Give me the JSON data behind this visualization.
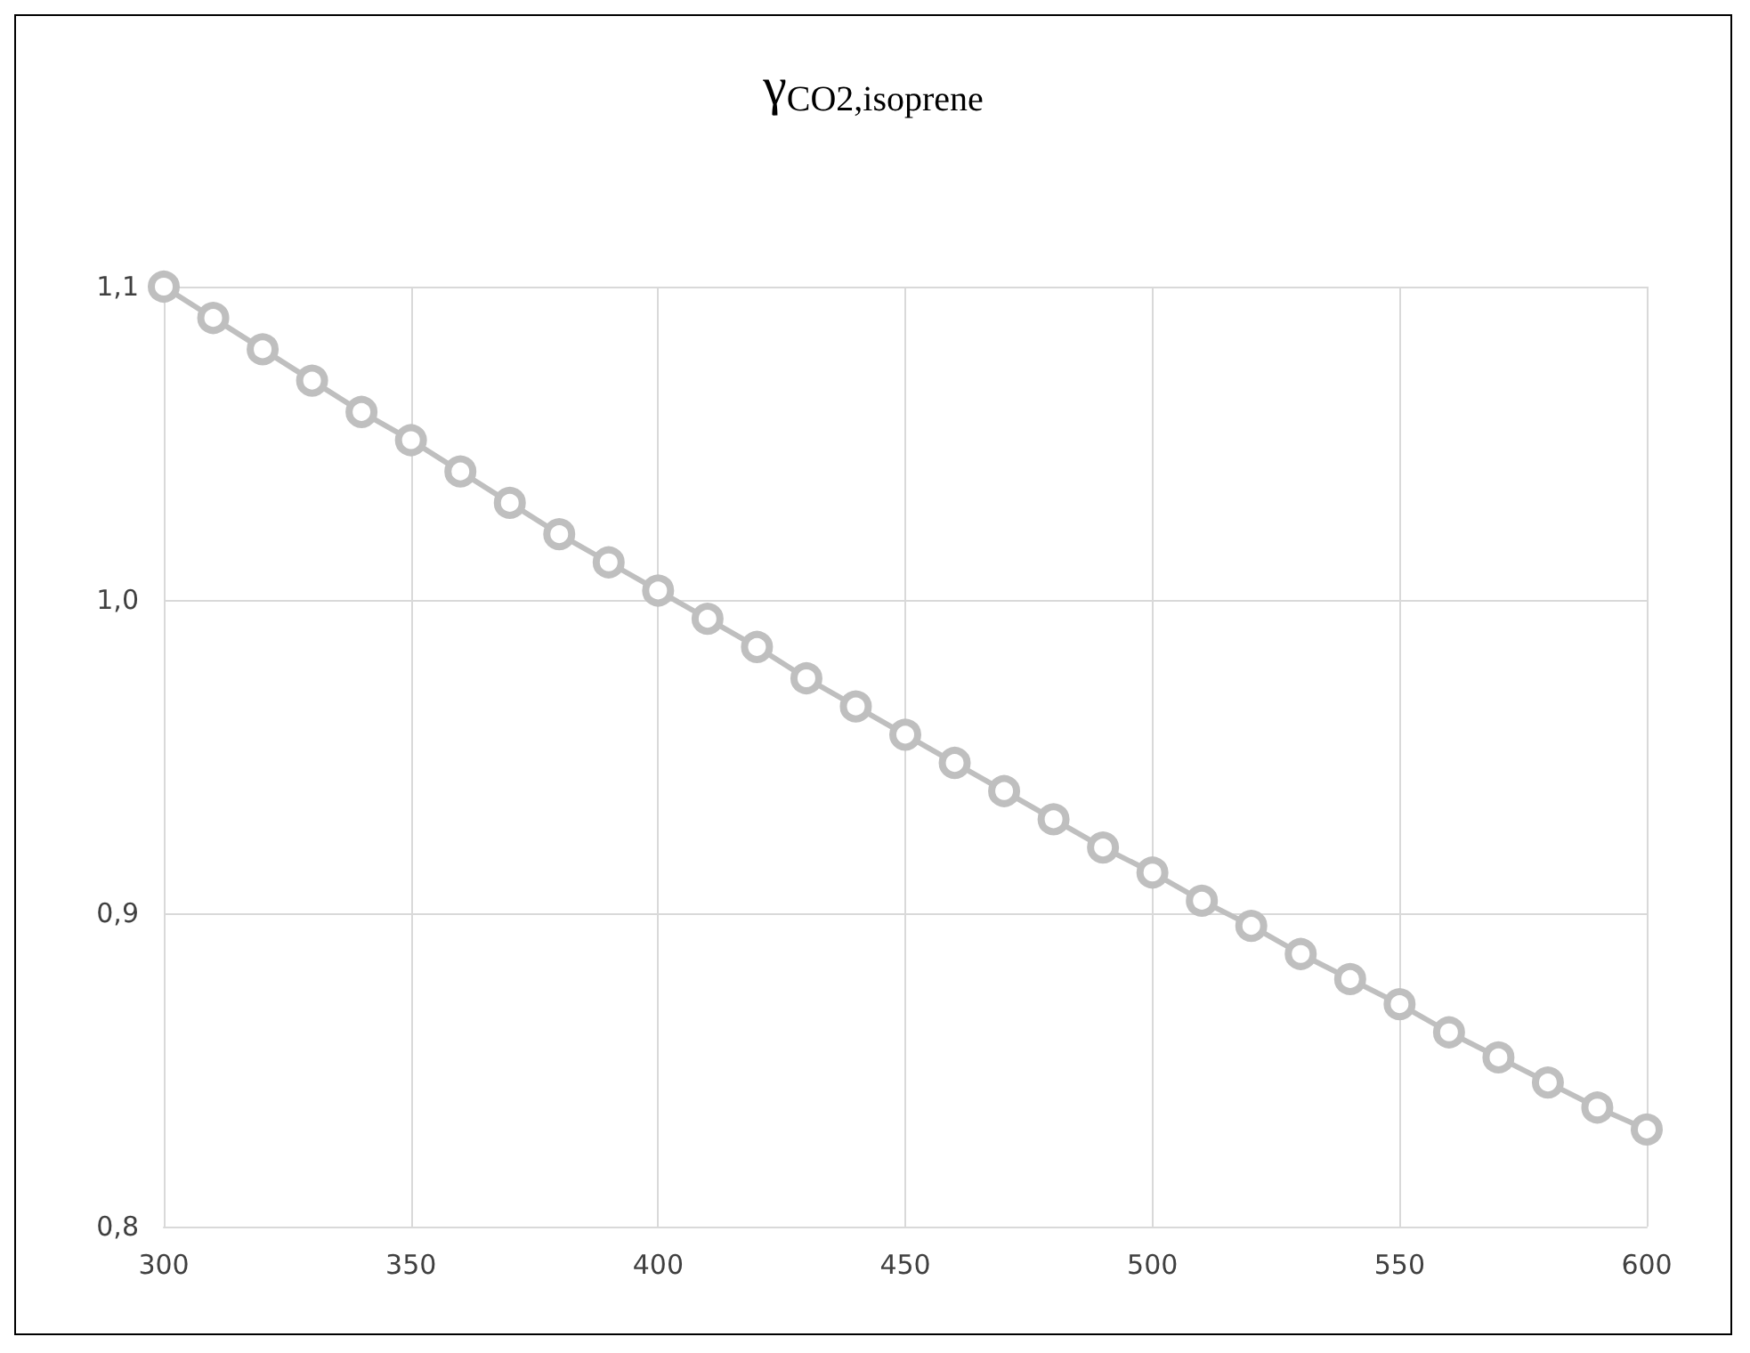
{
  "chart_data": {
    "type": "line",
    "title": "γ$_{CO2,isoprene}$",
    "x": [
      300,
      310,
      320,
      330,
      340,
      350,
      360,
      370,
      380,
      390,
      400,
      410,
      420,
      430,
      440,
      450,
      460,
      470,
      480,
      490,
      500,
      510,
      520,
      530,
      540,
      550,
      560,
      570,
      580,
      590,
      600
    ],
    "series": [
      {
        "color": "#bfbfbf",
        "values": [
          1.1,
          1.09,
          1.08,
          1.07,
          1.06,
          1.051,
          1.041,
          1.031,
          1.021,
          1.012,
          1.003,
          0.994,
          0.985,
          0.975,
          0.966,
          0.957,
          0.948,
          0.939,
          0.93,
          0.921,
          0.913,
          0.904,
          0.896,
          0.887,
          0.879,
          0.871,
          0.862,
          0.854,
          0.846,
          0.838,
          0.831
        ]
      }
    ],
    "xlim": [
      300,
      600
    ],
    "xticks": [
      300,
      350,
      400,
      450,
      500,
      550,
      600
    ],
    "ylim": [
      0.8,
      1.1
    ],
    "yticks": [
      {
        "value": 0.8,
        "label": "0,8"
      },
      {
        "value": 0.9,
        "label": "0,9"
      },
      {
        "value": 1.0,
        "label": "1,0"
      },
      {
        "value": 1.1,
        "label": "1,1"
      }
    ],
    "grid": true,
    "marker": "circle",
    "line_style": "solid"
  }
}
